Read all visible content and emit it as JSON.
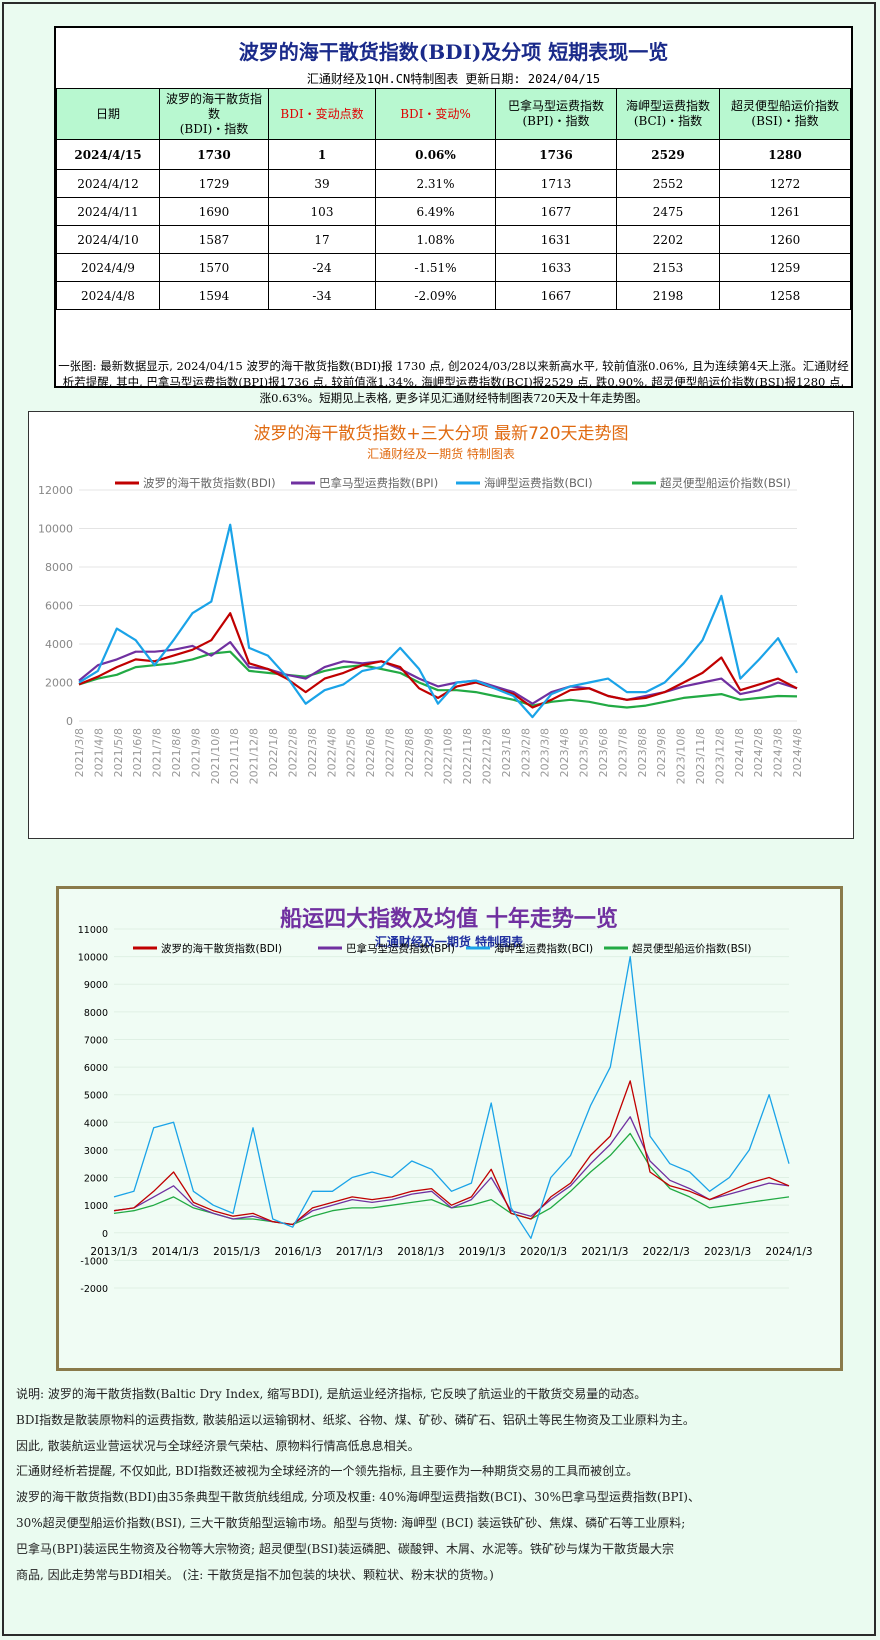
{
  "table": {
    "title": "波罗的海干散货指数(BDI)及分项  短期表现一览",
    "subtitle": "汇通财经及1QH.CN特制图表    更新日期: 2024/04/15",
    "headers": [
      "日期",
      "波罗的海干散货指数\n(BDI)・指数",
      "BDI・变动点数",
      "BDI・变动%",
      "巴拿马型运费指数\n(BPI)・指数",
      "海岬型运费指数\n(BCI)・指数",
      "超灵便型船运价指数\n(BSI)・指数"
    ],
    "rows": [
      [
        "2024/4/15",
        "1730",
        "1",
        "0.06%",
        "1736",
        "2529",
        "1280"
      ],
      [
        "2024/4/12",
        "1729",
        "39",
        "2.31%",
        "1713",
        "2552",
        "1272"
      ],
      [
        "2024/4/11",
        "1690",
        "103",
        "6.49%",
        "1677",
        "2475",
        "1261"
      ],
      [
        "2024/4/10",
        "1587",
        "17",
        "1.08%",
        "1631",
        "2202",
        "1260"
      ],
      [
        "2024/4/9",
        "1570",
        "-24",
        "-1.51%",
        "1633",
        "2153",
        "1259"
      ],
      [
        "2024/4/8",
        "1594",
        "-34",
        "-2.09%",
        "1667",
        "2198",
        "1258"
      ]
    ],
    "note": "一张图: 最新数据显示, 2024/04/15 波罗的海干散货指数(BDI)报 1730 点, 创2024/03/28以来新高水平, 较前值涨0.06%, 且为连续第4天上涨。汇通财经析若提醒, 其中, 巴拿马型运费指数(BPI)报1736 点, 较前值涨1.34%, 海岬型运费指数(BCI)报2529 点, 跌0.90%, 超灵便型船运价指数(BSI)报1280 点, 涨0.63%。短期见上表格, 更多详见汇通财经特制图表720天及十年走势图。"
  },
  "chart_data": [
    {
      "type": "line",
      "title": "波罗的海干散货指数+三大分项  最新720天走势图",
      "subtitle": "汇通财经及一期货  特制图表",
      "series_names": [
        "波罗的海干散货指数(BDI)",
        "巴拿马型运费指数(BPI)",
        "海岬型运费指数(BCI)",
        "超灵便型船运价指数(BSI)"
      ],
      "x_tick_labels": [
        "2021/3/8",
        "2021/4/8",
        "2021/5/8",
        "2021/6/8",
        "2021/7/8",
        "2021/8/8",
        "2021/9/8",
        "2021/10/8",
        "2021/11/8",
        "2021/12/8",
        "2022/1/8",
        "2022/2/8",
        "2022/3/8",
        "2022/4/8",
        "2022/5/8",
        "2022/6/8",
        "2022/7/8",
        "2022/8/8",
        "2022/9/8",
        "2022/10/8",
        "2022/11/8",
        "2022/12/8",
        "2023/1/8",
        "2023/2/8",
        "2023/3/8",
        "2023/4/8",
        "2023/5/8",
        "2023/6/8",
        "2023/7/8",
        "2023/8/8",
        "2023/9/8",
        "2023/10/8",
        "2023/11/8",
        "2023/12/8",
        "2024/1/8",
        "2024/2/8",
        "2024/3/8",
        "2024/4/8"
      ],
      "y_ticks": [
        "0",
        "2000",
        "4000",
        "6000",
        "8000",
        "10000",
        "12000"
      ],
      "ylim": [
        0,
        12000
      ],
      "grid": true,
      "legend": "top",
      "series": [
        {
          "name": "波罗的海干散货指数(BDI)",
          "color": "#c00000",
          "values": [
            1900,
            2300,
            2800,
            3200,
            3100,
            3400,
            3700,
            4200,
            5600,
            3000,
            2700,
            2200,
            1500,
            2200,
            2500,
            2900,
            3100,
            2800,
            1700,
            1200,
            1800,
            2000,
            1700,
            1400,
            700,
            1100,
            1600,
            1700,
            1300,
            1100,
            1200,
            1500,
            2000,
            2500,
            3300,
            1600,
            1900,
            2200,
            1700
          ]
        },
        {
          "name": "巴拿马型运费指数(BPI)",
          "color": "#7030a0",
          "values": [
            2100,
            2900,
            3200,
            3600,
            3600,
            3700,
            3900,
            3400,
            4100,
            2800,
            2700,
            2400,
            2200,
            2800,
            3100,
            3000,
            3100,
            2700,
            2200,
            1800,
            2000,
            2100,
            1800,
            1500,
            900,
            1500,
            1800,
            1700,
            1300,
            1100,
            1300,
            1500,
            1800,
            2000,
            2200,
            1400,
            1600,
            2000,
            1700
          ]
        },
        {
          "name": "海岬型运费指数(BCI)",
          "color": "#1aa3e8",
          "values": [
            2000,
            2600,
            4800,
            4200,
            2900,
            4200,
            5600,
            6200,
            10200,
            3800,
            3400,
            2300,
            900,
            1600,
            1900,
            2600,
            2800,
            3800,
            2700,
            900,
            2000,
            2100,
            1700,
            1300,
            200,
            1400,
            1800,
            2000,
            2200,
            1500,
            1500,
            2000,
            3000,
            4200,
            6500,
            2200,
            3200,
            4300,
            2500
          ]
        },
        {
          "name": "超灵便型船运价指数(BSI)",
          "color": "#22aa44",
          "values": [
            1900,
            2200,
            2400,
            2800,
            2900,
            3000,
            3200,
            3500,
            3600,
            2600,
            2500,
            2400,
            2300,
            2600,
            2800,
            2900,
            2700,
            2500,
            2000,
            1600,
            1600,
            1500,
            1300,
            1100,
            800,
            1000,
            1100,
            1000,
            800,
            700,
            800,
            1000,
            1200,
            1300,
            1400,
            1100,
            1200,
            1300,
            1280
          ]
        }
      ]
    },
    {
      "type": "line",
      "title": "船运四大指数及均值 十年走势一览",
      "subtitle": "汇通财经及一期货 特制图表",
      "series_names": [
        "波罗的海干散货指数(BDI)",
        "巴拿马型运费指数(BPI)",
        "海岬型运费指数(BCI)",
        "超灵便型船运价指数(BSI)"
      ],
      "x_tick_labels": [
        "2013/1/3",
        "2014/1/3",
        "2015/1/3",
        "2016/1/3",
        "2017/1/3",
        "2018/1/3",
        "2019/1/3",
        "2020/1/3",
        "2021/1/3",
        "2022/1/3",
        "2023/1/3",
        "2024/1/3"
      ],
      "y_ticks": [
        "-2000",
        "-1000",
        "0",
        "1000",
        "2000",
        "3000",
        "4000",
        "5000",
        "6000",
        "7000",
        "8000",
        "9000",
        "10000",
        "11000"
      ],
      "ylim": [
        -2000,
        11000
      ],
      "grid": true,
      "legend": "top",
      "series": [
        {
          "name": "波罗的海干散货指数(BDI)",
          "color": "#c00000",
          "values": [
            800,
            900,
            1500,
            2200,
            1100,
            800,
            600,
            700,
            400,
            300,
            900,
            1100,
            1300,
            1200,
            1300,
            1500,
            1600,
            1000,
            1300,
            2300,
            700,
            500,
            1300,
            1800,
            2800,
            3500,
            5500,
            2200,
            1700,
            1500,
            1200,
            1500,
            1800,
            2000,
            1700
          ]
        },
        {
          "name": "巴拿马型运费指数(BPI)",
          "color": "#7030a0",
          "values": [
            800,
            900,
            1300,
            1700,
            1000,
            700,
            500,
            600,
            400,
            300,
            800,
            1000,
            1200,
            1100,
            1200,
            1400,
            1500,
            900,
            1200,
            2000,
            800,
            600,
            1200,
            1700,
            2500,
            3200,
            4200,
            2600,
            1900,
            1600,
            1200,
            1400,
            1600,
            1800,
            1700
          ]
        },
        {
          "name": "海岬型运费指数(BCI)",
          "color": "#1aa3e8",
          "values": [
            1300,
            1500,
            3800,
            4000,
            1500,
            1000,
            700,
            3800,
            500,
            200,
            1500,
            1500,
            2000,
            2200,
            2000,
            2600,
            2300,
            1500,
            1800,
            4700,
            900,
            -200,
            2000,
            2800,
            4600,
            6000,
            10000,
            3500,
            2500,
            2200,
            1500,
            2000,
            3000,
            5000,
            2500
          ]
        },
        {
          "name": "超灵便型船运价指数(BSI)",
          "color": "#22aa44",
          "values": [
            700,
            800,
            1000,
            1300,
            900,
            700,
            500,
            500,
            400,
            300,
            600,
            800,
            900,
            900,
            1000,
            1100,
            1200,
            900,
            1000,
            1200,
            700,
            500,
            900,
            1500,
            2200,
            2800,
            3600,
            2400,
            1600,
            1300,
            900,
            1000,
            1100,
            1200,
            1300
          ]
        }
      ]
    }
  ],
  "explanation": [
    "说明: 波罗的海干散货指数(Baltic Dry Index, 缩写BDI), 是航运业经济指标, 它反映了航运业的干散货交易量的动态。",
    "BDI指数是散装原物料的运费指数, 散装船运以运输钢材、纸浆、谷物、煤、矿砂、磷矿石、铝矾土等民生物资及工业原料为主。",
    "因此, 散装航运业营运状况与全球经济景气荣枯、原物料行情高低息息相关。",
    "汇通财经析若提醒, 不仅如此, BDI指数还被视为全球经济的一个领先指标, 且主要作为一种期货交易的工具而被创立。",
    "波罗的海干散货指数(BDI)由35条典型干散货航线组成, 分项及权重: 40%海岬型运费指数(BCI)、30%巴拿马型运费指数(BPI)、",
    "30%超灵便型船运价指数(BSI), 三大干散货船型运输市场。船型与货物: 海岬型 (BCI) 装运铁矿砂、焦煤、磷矿石等工业原料;",
    "巴拿马(BPI)装运民生物资及谷物等大宗物资; 超灵便型(BSI)装运磷肥、碳酸钾、木屑、水泥等。铁矿砂与煤为干散货最大宗",
    "商品, 因此走势常与BDI相关。 (注: 干散货是指不加包装的块状、颗粒状、粉末状的货物。)"
  ]
}
